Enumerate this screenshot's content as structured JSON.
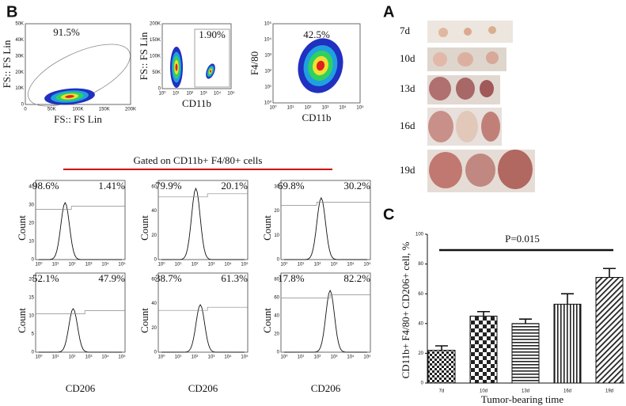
{
  "panel_b": {
    "label": "B",
    "dot_plots": [
      {
        "percent": "91.5%",
        "xlabel": "FS:: FS Lin",
        "ylabel": "FS:: FS Lin",
        "xticks": [
          0,
          "50K",
          "100K",
          "150K",
          "200K"
        ],
        "yticks": [
          0,
          "10K",
          "20K",
          "30K",
          "40K",
          "50K"
        ]
      },
      {
        "percent": "1.90%",
        "xlabel": "CD11b",
        "ylabel": "FS:: FS Lin",
        "xticks": [
          "10⁰",
          "10¹",
          "10²",
          "10³",
          "10⁴",
          "10⁵"
        ],
        "yticks": [
          0,
          "50K",
          "100K",
          "150K",
          "200K"
        ]
      },
      {
        "percent": "42.5%",
        "xlabel": "CD11b",
        "ylabel": "F4/80",
        "xticks": [
          "10⁰",
          "10¹",
          "10²",
          "10³",
          "10⁴",
          "10⁵"
        ],
        "yticks": [
          "10⁰",
          "10¹",
          "10²",
          "10³",
          "10⁴",
          "10⁵"
        ]
      }
    ],
    "gate_label": "Gated on CD11b+ F4/80+ cells",
    "hist_ylabel": "Count",
    "hist_xlabel": "CD206",
    "hist_xticks": [
      "10⁰",
      "10¹",
      "10²",
      "10³",
      "10⁴",
      "10⁵"
    ],
    "histograms": [
      {
        "left": "98.6%",
        "right": "1.41%",
        "yticks": [
          0,
          10,
          20,
          30,
          40
        ]
      },
      {
        "left": "79.9%",
        "right": "20.1%",
        "yticks": [
          0,
          20,
          40,
          60
        ]
      },
      {
        "left": "69.8%",
        "right": "30.2%",
        "yticks": [
          0,
          10,
          20,
          30
        ]
      },
      {
        "left": "52.1%",
        "right": "47.9%",
        "yticks": [
          0,
          5,
          10,
          15,
          20
        ]
      },
      {
        "left": "38.7%",
        "right": "61.3%",
        "yticks": [
          0,
          20,
          40,
          60
        ]
      },
      {
        "left": "17.8%",
        "right": "82.2%",
        "yticks": [
          0,
          20,
          40,
          60,
          80
        ]
      }
    ]
  },
  "panel_a": {
    "label": "A",
    "rows": [
      "7d",
      "10d",
      "13d",
      "16d",
      "19d"
    ]
  },
  "chart_data": {
    "type": "bar",
    "label": "C",
    "annotation": "P=0.015",
    "ylabel": "CD11b+ F4/80+ CD206+ cell, %",
    "xlabel": "Tumor-bearing time",
    "categories": [
      "7d",
      "10d",
      "13d",
      "16d",
      "19d"
    ],
    "values": [
      22,
      45,
      40,
      53,
      71
    ],
    "errors": [
      3,
      3,
      3,
      7,
      6
    ],
    "ylim": [
      0,
      100
    ],
    "yticks": [
      0,
      20,
      40,
      60,
      80,
      100
    ],
    "color": "#111111"
  }
}
